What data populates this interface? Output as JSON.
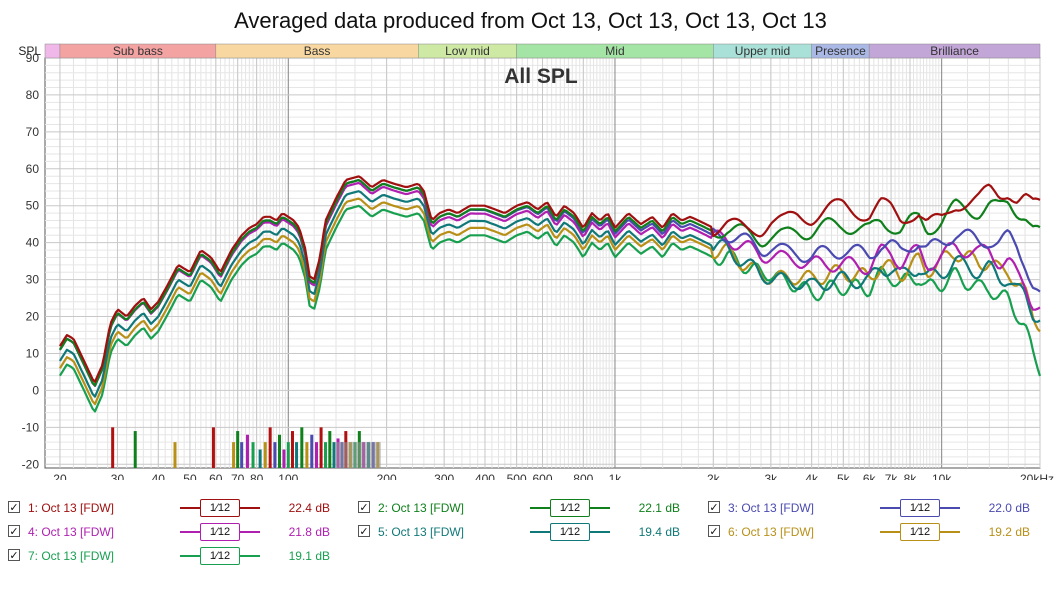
{
  "title": "Averaged data produced from Oct 13, Oct 13, Oct 13, Oct 13",
  "chart_data": {
    "type": "line",
    "title": "All SPL",
    "ylabel": "SPL",
    "xunit": "Hz",
    "xscale": "log",
    "xlim": [
      18,
      20000
    ],
    "ylim": [
      -21,
      90
    ],
    "yticks": [
      90,
      80,
      70,
      60,
      50,
      40,
      30,
      20,
      10,
      0,
      -10,
      -20
    ],
    "ytick_labels": [
      "90",
      "80",
      "70",
      "60",
      "50",
      "40",
      "30",
      "20",
      "10",
      "0",
      "-10",
      "-20"
    ],
    "xticks": [
      20,
      30,
      40,
      50,
      60,
      70,
      80,
      100,
      200,
      300,
      400,
      500,
      600,
      800,
      1000,
      2000,
      3000,
      4000,
      5000,
      6000,
      7000,
      8000,
      10000,
      20000
    ],
    "xtick_labels": [
      "20",
      "30",
      "40",
      "50",
      "60",
      "70",
      "80",
      "100",
      "200",
      "300",
      "400",
      "500",
      "600",
      "800",
      "1k",
      "2k",
      "3k",
      "4k",
      "5k",
      "6k",
      "7k",
      "8k",
      "10k",
      "20kHz"
    ],
    "grid": true,
    "bands": [
      {
        "name": "",
        "from": 18,
        "to": 20,
        "color": "#f0b8e8"
      },
      {
        "name": "Sub bass",
        "from": 20,
        "to": 60,
        "color": "#f4a3a3"
      },
      {
        "name": "Bass",
        "from": 60,
        "to": 250,
        "color": "#f8d7a0"
      },
      {
        "name": "Low mid",
        "from": 250,
        "to": 500,
        "color": "#cde9a4"
      },
      {
        "name": "Mid",
        "from": 500,
        "to": 2000,
        "color": "#a4e4a4"
      },
      {
        "name": "Upper mid",
        "from": 2000,
        "to": 4000,
        "color": "#a9e0d8"
      },
      {
        "name": "Presence",
        "from": 4000,
        "to": 6000,
        "color": "#aab8e6"
      },
      {
        "name": "Brilliance",
        "from": 6000,
        "to": 20000,
        "color": "#c2a6d8"
      }
    ],
    "base_curve": {
      "x": [
        20,
        21,
        22,
        24,
        25.5,
        27,
        28.5,
        30,
        32,
        34,
        36,
        38,
        40,
        43,
        46,
        50,
        54,
        58,
        62,
        67,
        72,
        76,
        80,
        84,
        88,
        92,
        96,
        100,
        104,
        108,
        113,
        116,
        120,
        125,
        130,
        140,
        150,
        165,
        180,
        195,
        210,
        230,
        250,
        260,
        275,
        290,
        310,
        330,
        360,
        400,
        430,
        460,
        500,
        540,
        580,
        620,
        660,
        700,
        750,
        800,
        850,
        900,
        950,
        1000,
        1100,
        1200,
        1300,
        1400,
        1500,
        1600,
        1700,
        1800,
        1900,
        2000,
        2200,
        2400,
        2600,
        2800,
        3000,
        3300,
        3600,
        4000,
        4500,
        5000,
        5500,
        6000,
        6500,
        7000,
        7500,
        8000,
        8500,
        9000,
        10000,
        11000,
        12000,
        13000,
        14000,
        15000,
        16000,
        17000,
        18000,
        19000,
        20000
      ],
      "y": [
        12,
        15,
        14,
        7,
        2,
        7,
        18,
        22,
        20,
        23,
        25,
        22,
        24,
        29,
        34,
        32,
        38,
        36,
        32,
        38,
        42,
        44,
        45,
        47,
        47,
        46,
        48,
        47,
        46,
        44,
        38,
        31,
        30,
        36,
        46,
        52,
        57,
        58,
        55,
        57,
        56,
        55,
        56,
        54,
        46,
        48,
        49,
        48,
        50,
        50,
        49,
        48,
        50,
        51,
        49,
        51,
        47,
        50,
        48,
        44,
        48,
        46,
        48,
        44,
        48,
        45,
        47,
        44,
        48,
        46,
        47,
        46,
        45,
        44,
        45,
        44,
        43,
        42,
        43,
        42,
        43,
        42,
        43,
        43,
        42,
        41,
        44,
        43,
        41,
        43,
        44,
        41,
        43,
        46,
        45,
        44,
        45,
        43,
        44,
        41,
        41,
        38,
        38
      ]
    },
    "series": [
      {
        "name": "1: Oct 13 [FDW]",
        "short": "1",
        "color": "#a01010",
        "value": "22.4 dB",
        "offsets": [
          [
            20,
            0
          ],
          [
            300,
            0
          ],
          [
            2500,
            0
          ],
          [
            3000,
            3
          ],
          [
            4000,
            5
          ],
          [
            5000,
            7
          ],
          [
            7000,
            6
          ],
          [
            10000,
            3
          ],
          [
            14000,
            9
          ],
          [
            17000,
            11
          ],
          [
            20000,
            12
          ]
        ]
      },
      {
        "name": "2: Oct 13 [FDW]",
        "short": "2",
        "color": "#10801c",
        "value": "22.1 dB",
        "offsets": [
          [
            20,
            -1
          ],
          [
            300,
            -1
          ],
          [
            2000,
            -1
          ],
          [
            3000,
            -1
          ],
          [
            4000,
            1
          ],
          [
            5000,
            2
          ],
          [
            7000,
            2
          ],
          [
            10000,
            3
          ],
          [
            14000,
            5
          ],
          [
            17000,
            8
          ],
          [
            20000,
            4
          ]
        ]
      },
      {
        "name": "3: Oct 13 [FDW]",
        "short": "3",
        "color": "#4a4ab0",
        "value": "22.0 dB",
        "offsets": [
          [
            20,
            -1
          ],
          [
            300,
            -1
          ],
          [
            2000,
            -2
          ],
          [
            3000,
            -4
          ],
          [
            4000,
            -6
          ],
          [
            5000,
            -5
          ],
          [
            7000,
            -4
          ],
          [
            10000,
            -3
          ],
          [
            14000,
            -4
          ],
          [
            17000,
            -2
          ],
          [
            20000,
            -13
          ]
        ]
      },
      {
        "name": "4: Oct 13 [FDW]",
        "short": "4",
        "color": "#b020b0",
        "value": "21.8 dB",
        "offsets": [
          [
            20,
            -1
          ],
          [
            300,
            -2
          ],
          [
            2000,
            -3
          ],
          [
            3000,
            -6
          ],
          [
            4000,
            -8
          ],
          [
            5000,
            -9
          ],
          [
            7000,
            -6
          ],
          [
            10000,
            -7
          ],
          [
            14000,
            -7
          ],
          [
            17000,
            -10
          ],
          [
            20000,
            -16
          ]
        ]
      },
      {
        "name": "5: Oct 13 [FDW]",
        "short": "5",
        "color": "#107878",
        "value": "19.4 dB",
        "offsets": [
          [
            20,
            -4
          ],
          [
            300,
            -4
          ],
          [
            2000,
            -5
          ],
          [
            3000,
            -12
          ],
          [
            4000,
            -14
          ],
          [
            5000,
            -13
          ],
          [
            7000,
            -10
          ],
          [
            10000,
            -11
          ],
          [
            14000,
            -12
          ],
          [
            17000,
            -14
          ],
          [
            20000,
            -18
          ]
        ]
      },
      {
        "name": "6: Oct 13 [FDW]",
        "short": "6",
        "color": "#b89018",
        "value": "19.2 dB",
        "offsets": [
          [
            20,
            -6
          ],
          [
            300,
            -6
          ],
          [
            2000,
            -6
          ],
          [
            3000,
            -12
          ],
          [
            4000,
            -12
          ],
          [
            5000,
            -11
          ],
          [
            7000,
            -10
          ],
          [
            10000,
            -8
          ],
          [
            14000,
            -10
          ],
          [
            17000,
            -12
          ],
          [
            20000,
            -20
          ]
        ]
      },
      {
        "name": "7: Oct 13 [FDW]",
        "short": "7",
        "color": "#18a050",
        "value": "19.1 dB",
        "offsets": [
          [
            20,
            -8
          ],
          [
            300,
            -8
          ],
          [
            2000,
            -8
          ],
          [
            3000,
            -11
          ],
          [
            4000,
            -16
          ],
          [
            5000,
            -15
          ],
          [
            7000,
            -12
          ],
          [
            10000,
            -14
          ],
          [
            14000,
            -17
          ],
          [
            17000,
            -20
          ],
          [
            20000,
            -32
          ]
        ]
      }
    ],
    "resonance_markers": [
      {
        "f": 29,
        "level": -10,
        "color": "#b01010"
      },
      {
        "f": 34,
        "level": -11,
        "color": "#10801c"
      },
      {
        "f": 45,
        "level": -14,
        "color": "#b89018"
      },
      {
        "f": 59,
        "level": -10,
        "color": "#b01010"
      },
      {
        "f": 68,
        "level": -14,
        "color": "#b89018"
      },
      {
        "f": 70,
        "level": -11,
        "color": "#10801c"
      },
      {
        "f": 72,
        "level": -14,
        "color": "#4a4ab0"
      },
      {
        "f": 75,
        "level": -12,
        "color": "#b020b0"
      },
      {
        "f": 78,
        "level": -14,
        "color": "#18a050"
      },
      {
        "f": 82,
        "level": -16,
        "color": "#107878"
      },
      {
        "f": 85,
        "level": -14,
        "color": "#b89018"
      },
      {
        "f": 88,
        "level": -10,
        "color": "#b01010"
      },
      {
        "f": 91,
        "level": -14,
        "color": "#4a4ab0"
      },
      {
        "f": 94,
        "level": -12,
        "color": "#10801c"
      },
      {
        "f": 97,
        "level": -16,
        "color": "#b020b0"
      },
      {
        "f": 100,
        "level": -14,
        "color": "#18a050"
      },
      {
        "f": 103,
        "level": -11,
        "color": "#b01010"
      },
      {
        "f": 106,
        "level": -14,
        "color": "#107878"
      },
      {
        "f": 110,
        "level": -10,
        "color": "#10801c"
      },
      {
        "f": 114,
        "level": -14,
        "color": "#b89018"
      },
      {
        "f": 118,
        "level": -12,
        "color": "#4a4ab0"
      },
      {
        "f": 122,
        "level": -14,
        "color": "#b020b0"
      },
      {
        "f": 126,
        "level": -10,
        "color": "#b01010"
      },
      {
        "f": 130,
        "level": -14,
        "color": "#18a050"
      },
      {
        "f": 134,
        "level": -11,
        "color": "#10801c"
      },
      {
        "f": 138,
        "level": -14,
        "color": "#107878"
      },
      {
        "f": 142,
        "level": -13,
        "color": "#b020b0"
      },
      {
        "f": 146,
        "level": -14,
        "color": "#4a4ab0"
      },
      {
        "f": 150,
        "level": -11,
        "color": "#b01010"
      },
      {
        "f": 155,
        "level": -14,
        "color": "#b89018"
      },
      {
        "f": 160,
        "level": -14,
        "color": "#18a050"
      },
      {
        "f": 165,
        "level": -11,
        "color": "#10801c"
      },
      {
        "f": 170,
        "level": -14,
        "color": "#b020b0"
      },
      {
        "f": 176,
        "level": -14,
        "color": "#107878"
      },
      {
        "f": 182,
        "level": -14,
        "color": "#4a4ab0"
      },
      {
        "f": 188,
        "level": -14,
        "color": "#b89018"
      }
    ]
  },
  "legend": {
    "smoothing_label": "1⁄12"
  }
}
